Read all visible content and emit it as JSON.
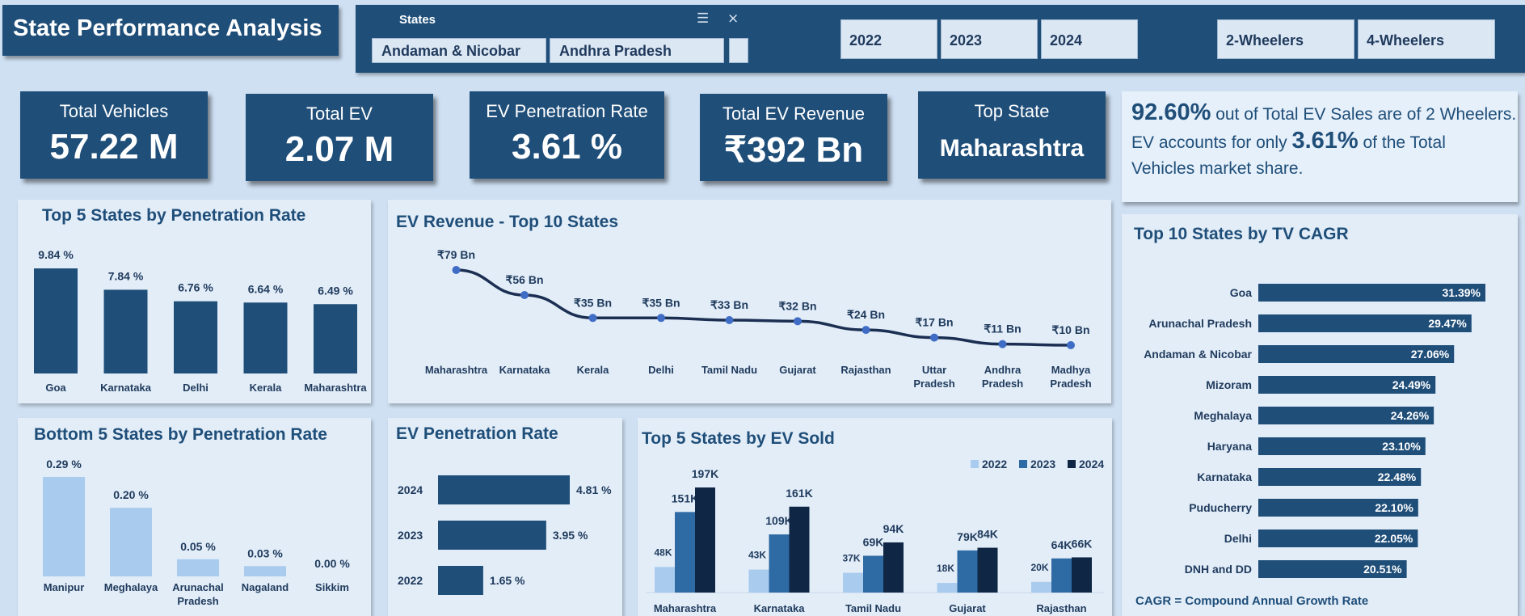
{
  "header": {
    "title": "State Performance Analysis",
    "slicer": {
      "label": "States",
      "chips": [
        "Andaman & Nicobar",
        "Andhra Pradesh"
      ]
    },
    "years": [
      "2022",
      "2023",
      "2024"
    ],
    "vehicle_types": [
      "2-Wheelers",
      "4-Wheelers"
    ]
  },
  "kpis": [
    {
      "label": "Total Vehicles",
      "value": "57.22 M"
    },
    {
      "label": "Total EV",
      "value": "2.07 M"
    },
    {
      "label": "EV Penetration Rate",
      "value": "3.61 %"
    },
    {
      "label": "Total EV Revenue",
      "value": "₹392 Bn"
    },
    {
      "label": "Top State",
      "value": "Maharashtra"
    }
  ],
  "summary": {
    "pct1": "92.60%",
    "text1": " out of Total EV Sales are of 2 Wheelers.",
    "text2a": "EV accounts for only ",
    "pct2": "3.61%",
    "text2b": " of the Total",
    "text3": "Vehicles market share."
  },
  "colors": {
    "dark": "#1f4e79",
    "navy": "#0f2745",
    "light": "#a9cbee",
    "mid": "#2e6aa3"
  },
  "chart_data": [
    {
      "id": "top5pen",
      "type": "bar",
      "title": "Top 5 States by Penetration Rate",
      "categories": [
        "Goa",
        "Karnataka",
        "Delhi",
        "Kerala",
        "Maharashtra"
      ],
      "values": [
        9.84,
        7.84,
        6.76,
        6.64,
        6.49
      ],
      "labels": [
        "9.84 %",
        "7.84 %",
        "6.76 %",
        "6.64 %",
        "6.49 %"
      ]
    },
    {
      "id": "bottom5pen",
      "type": "bar",
      "title": "Bottom 5 States by Penetration Rate",
      "categories": [
        "Manipur",
        "Meghalaya",
        "Arunachal Pradesh",
        "Nagaland",
        "Sikkim"
      ],
      "values": [
        0.29,
        0.2,
        0.05,
        0.03,
        0.0
      ],
      "labels": [
        "0.29 %",
        "0.20 %",
        "0.05 %",
        "0.03 %",
        "0.00 %"
      ]
    },
    {
      "id": "revenue",
      "type": "line",
      "title": "EV Revenue - Top 10 States",
      "categories": [
        "Maharashtra",
        "Karnataka",
        "Kerala",
        "Delhi",
        "Tamil Nadu",
        "Gujarat",
        "Rajasthan",
        "Uttar Pradesh",
        "Andhra Pradesh",
        "Madhya Pradesh"
      ],
      "values": [
        79,
        56,
        35,
        35,
        33,
        32,
        24,
        17,
        11,
        10
      ],
      "labels": [
        "₹79 Bn",
        "₹56 Bn",
        "₹35 Bn",
        "₹35 Bn",
        "₹33 Bn",
        "₹32 Bn",
        "₹24 Bn",
        "₹17 Bn",
        "₹11 Bn",
        "₹10 Bn"
      ]
    },
    {
      "id": "penyear",
      "type": "bar",
      "title": "EV Penetration Rate",
      "categories": [
        "2024",
        "2023",
        "2022"
      ],
      "values": [
        4.81,
        3.95,
        1.65
      ],
      "labels": [
        "4.81 %",
        "3.95 %",
        "1.65 %"
      ]
    },
    {
      "id": "evsold",
      "type": "bar",
      "title": "Top 5 States by EV Sold",
      "categories": [
        "Maharashtra",
        "Karnataka",
        "Tamil Nadu",
        "Gujarat",
        "Rajasthan"
      ],
      "series": [
        {
          "name": "2022",
          "values": [
            48,
            43,
            37,
            18,
            20
          ],
          "labels": [
            "48K",
            "43K",
            "37K",
            "18K",
            "20K"
          ]
        },
        {
          "name": "2023",
          "values": [
            151,
            109,
            69,
            79,
            64
          ],
          "labels": [
            "151K",
            "109K",
            "69K",
            "79K",
            "64K"
          ]
        },
        {
          "name": "2024",
          "values": [
            197,
            161,
            94,
            84,
            66
          ],
          "labels": [
            "197K",
            "161K",
            "94K",
            "84K",
            "66K"
          ]
        }
      ],
      "legend": "top-right"
    },
    {
      "id": "cagr",
      "type": "bar",
      "title": "Top 10 States by TV CAGR",
      "categories": [
        "Goa",
        "Arunachal Pradesh",
        "Andaman & Nicobar",
        "Mizoram",
        "Meghalaya",
        "Haryana",
        "Karnataka",
        "Puducherry",
        "Delhi",
        "DNH and DD"
      ],
      "values": [
        31.39,
        29.47,
        27.06,
        24.49,
        24.26,
        23.1,
        22.48,
        22.1,
        22.05,
        20.51
      ],
      "labels": [
        "31.39%",
        "29.47%",
        "27.06%",
        "24.49%",
        "24.26%",
        "23.10%",
        "22.48%",
        "22.10%",
        "22.05%",
        "20.51%"
      ],
      "footnote": "CAGR = Compound Annual Growth Rate"
    }
  ]
}
